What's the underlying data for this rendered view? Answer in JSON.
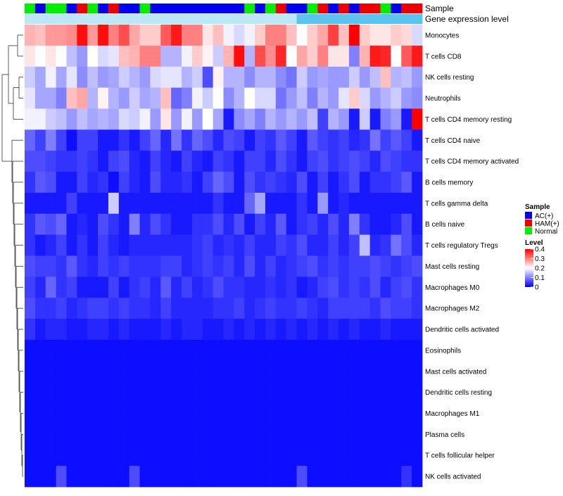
{
  "chart_data": {
    "type": "heatmap",
    "title": "",
    "color_scale": {
      "low": "#0000FF",
      "mid": "#FFFFFF",
      "high": "#FF0000",
      "min": 0,
      "max": 0.4,
      "ticks": [
        0.4,
        0.3,
        0.2,
        0.1,
        0
      ],
      "tick_labels": [
        "0.4",
        "0.3",
        "0.2",
        "0.1",
        "0"
      ]
    },
    "annotation_tracks": [
      {
        "name": "Sample",
        "values": [
          "Normal",
          "AC(+)",
          "Normal",
          "Normal",
          "AC(+)",
          "HAM(+)",
          "Normal",
          "AC(+)",
          "HAM(+)",
          "AC(+)",
          "AC(+)",
          "Normal",
          "AC(+)",
          "AC(+)",
          "AC(+)",
          "AC(+)",
          "AC(+)",
          "AC(+)",
          "AC(+)",
          "AC(+)",
          "AC(+)",
          "Normal",
          "AC(+)",
          "Normal",
          "HAM(+)",
          "AC(+)",
          "AC(+)",
          "Normal",
          "HAM(+)",
          "AC(+)",
          "HAM(+)",
          "AC(+)",
          "HAM(+)",
          "HAM(+)",
          "Normal",
          "AC(+)",
          "HAM(+)",
          "HAM(+)"
        ]
      },
      {
        "name": "Gene expression level",
        "values": [
          "High",
          "High",
          "High",
          "High",
          "High",
          "High",
          "High",
          "High",
          "High",
          "High",
          "High",
          "High",
          "High",
          "High",
          "High",
          "High",
          "High",
          "High",
          "High",
          "High",
          "High",
          "High",
          "High",
          "High",
          "High",
          "High",
          "Low",
          "Low",
          "Low",
          "Low",
          "Low",
          "Low",
          "Low",
          "Low",
          "Low",
          "Low",
          "Low",
          "Low"
        ]
      }
    ],
    "track_colors": {
      "Sample": {
        "AC(+)": "#0000EE",
        "HAM(+)": "#EE0000",
        "Normal": "#00EE00"
      },
      "Gene expression level": {
        "High": "#BDE6F7",
        "Low": "#5CC3EE"
      }
    },
    "legends": [
      {
        "title": "Sample",
        "entries": [
          "AC(+)",
          "HAM(+)",
          "Normal"
        ]
      },
      {
        "title": "Level",
        "entries": []
      }
    ],
    "rows": [
      "Monocytes",
      "T cells CD8",
      "NK cells resting",
      "Neutrophils",
      "T cells CD4 memory resting",
      "T cells CD4 naive",
      "T cells CD4 memory activated",
      "B cells memory",
      "T cells gamma delta",
      "B cells naive",
      "T cells regulatory  Tregs",
      "Mast cells resting",
      "Macrophages M0",
      "Macrophages M2",
      "Dendritic cells activated",
      "Eosinophils",
      "Mast cells activated",
      "Dendritic cells resting",
      "Macrophages M1",
      "Plasma cells",
      "T cells follicular helper",
      "NK cells activated"
    ],
    "n_columns": 38,
    "values": [
      [
        0.26,
        0.25,
        0.28,
        0.28,
        0.29,
        0.39,
        0.28,
        0.39,
        0.3,
        0.34,
        0.27,
        0.24,
        0.24,
        0.33,
        0.38,
        0.3,
        0.3,
        0.22,
        0.25,
        0.19,
        0.17,
        0.19,
        0.24,
        0.3,
        0.3,
        0.25,
        0.2,
        0.24,
        0.27,
        0.35,
        0.25,
        0.4,
        0.24,
        0.22,
        0.22,
        0.24,
        0.23,
        0.17
      ],
      [
        0.22,
        0.2,
        0.22,
        0.2,
        0.15,
        0.12,
        0.2,
        0.17,
        0.18,
        0.25,
        0.26,
        0.3,
        0.3,
        0.14,
        0.14,
        0.19,
        0.24,
        0.21,
        0.16,
        0.26,
        0.39,
        0.14,
        0.34,
        0.29,
        0.37,
        0.2,
        0.27,
        0.24,
        0.3,
        0.22,
        0.22,
        0.1,
        0.26,
        0.38,
        0.37,
        0.2,
        0.33,
        0.38
      ],
      [
        0.16,
        0.13,
        0.19,
        0.13,
        0.18,
        0.11,
        0.15,
        0.12,
        0.13,
        0.16,
        0.14,
        0.12,
        0.17,
        0.18,
        0.18,
        0.14,
        0.16,
        0.06,
        0.21,
        0.14,
        0.14,
        0.11,
        0.14,
        0.14,
        0.11,
        0.09,
        0.16,
        0.12,
        0.13,
        0.12,
        0.12,
        0.16,
        0.12,
        0.15,
        0.25,
        0.14,
        0.15,
        0.12
      ],
      [
        0.18,
        0.13,
        0.13,
        0.1,
        0.25,
        0.27,
        0.14,
        0.21,
        0.14,
        0.12,
        0.16,
        0.13,
        0.14,
        0.25,
        0.08,
        0.1,
        0.19,
        0.16,
        0.2,
        0.11,
        0.14,
        0.2,
        0.17,
        0.17,
        0.09,
        0.12,
        0.15,
        0.1,
        0.14,
        0.12,
        0.18,
        0.24,
        0.17,
        0.12,
        0.14,
        0.16,
        0.12,
        0.11
      ],
      [
        0.19,
        0.19,
        0.16,
        0.15,
        0.12,
        0.15,
        0.13,
        0.14,
        0.13,
        0.17,
        0.16,
        0.19,
        0.12,
        0.22,
        0.12,
        0.19,
        0.12,
        0.2,
        0.13,
        0.02,
        0.11,
        0.13,
        0.1,
        0.14,
        0.12,
        0.14,
        0.12,
        0.15,
        0.05,
        0.14,
        0.12,
        0.02,
        0.16,
        0.02,
        0.1,
        0.12,
        0.02,
        0.4
      ],
      [
        0.08,
        0.05,
        0.1,
        0.05,
        0.01,
        0.05,
        0.05,
        0.02,
        0.02,
        0.04,
        0.02,
        0.05,
        0.08,
        0.03,
        0.09,
        0.04,
        0.08,
        0.06,
        0.03,
        0.06,
        0.05,
        0.02,
        0.05,
        0.04,
        0.07,
        0.05,
        0.02,
        0.07,
        0.05,
        0.04,
        0.05,
        0.03,
        0.04,
        0.09,
        0.05,
        0.07,
        0.05,
        0.02
      ],
      [
        0.06,
        0.06,
        0.05,
        0.04,
        0.04,
        0.05,
        0.04,
        0.02,
        0.05,
        0.06,
        0.03,
        0.02,
        0.05,
        0.03,
        0.02,
        0.05,
        0.03,
        0.02,
        0.05,
        0.04,
        0.02,
        0.05,
        0.05,
        0.03,
        0.06,
        0.04,
        0.02,
        0.05,
        0.06,
        0.04,
        0.05,
        0.06,
        0.05,
        0.03,
        0.06,
        0.05,
        0.04,
        0.04
      ],
      [
        0.04,
        0.07,
        0.06,
        0.02,
        0.02,
        0.05,
        0.03,
        0.04,
        0.01,
        0.05,
        0.03,
        0.02,
        0.06,
        0.03,
        0.03,
        0.04,
        0.02,
        0.05,
        0.08,
        0.06,
        0.02,
        0.06,
        0.04,
        0.05,
        0.04,
        0.03,
        0.06,
        0.02,
        0.05,
        0.02,
        0.04,
        0.06,
        0.02,
        0.04,
        0.04,
        0.05,
        0.07,
        0.02
      ],
      [
        0.02,
        0.02,
        0.02,
        0.02,
        0.05,
        0.02,
        0.02,
        0.02,
        0.16,
        0.02,
        0.02,
        0.02,
        0.02,
        0.02,
        0.02,
        0.02,
        0.02,
        0.02,
        0.04,
        0.02,
        0.02,
        0.08,
        0.13,
        0.02,
        0.02,
        0.02,
        0.04,
        0.02,
        0.12,
        0.02,
        0.03,
        0.02,
        0.02,
        0.02,
        0.02,
        0.02,
        0.02,
        0.02
      ],
      [
        0.04,
        0.07,
        0.06,
        0.08,
        0.02,
        0.03,
        0.02,
        0.06,
        0.04,
        0.02,
        0.1,
        0.03,
        0.06,
        0.04,
        0.02,
        0.02,
        0.04,
        0.04,
        0.06,
        0.03,
        0.06,
        0.02,
        0.05,
        0.03,
        0.07,
        0.02,
        0.04,
        0.05,
        0.03,
        0.06,
        0.03,
        0.1,
        0.04,
        0.02,
        0.02,
        0.03,
        0.06,
        0.02
      ],
      [
        0.04,
        0.02,
        0.03,
        0.05,
        0.02,
        0.04,
        0.02,
        0.05,
        0.03,
        0.02,
        0.03,
        0.03,
        0.03,
        0.03,
        0.03,
        0.03,
        0.04,
        0.05,
        0.03,
        0.04,
        0.03,
        0.05,
        0.03,
        0.03,
        0.05,
        0.04,
        0.06,
        0.03,
        0.03,
        0.05,
        0.03,
        0.05,
        0.15,
        0.03,
        0.04,
        0.09,
        0.06,
        0.03
      ],
      [
        0.06,
        0.05,
        0.05,
        0.04,
        0.07,
        0.04,
        0.03,
        0.05,
        0.04,
        0.05,
        0.04,
        0.04,
        0.04,
        0.05,
        0.05,
        0.03,
        0.04,
        0.05,
        0.04,
        0.05,
        0.03,
        0.06,
        0.03,
        0.05,
        0.03,
        0.04,
        0.05,
        0.06,
        0.04,
        0.05,
        0.04,
        0.05,
        0.05,
        0.06,
        0.05,
        0.04,
        0.05,
        0.06
      ],
      [
        0.05,
        0.03,
        0.08,
        0.04,
        0.05,
        0.02,
        0.02,
        0.02,
        0.05,
        0.02,
        0.04,
        0.05,
        0.03,
        0.07,
        0.03,
        0.05,
        0.03,
        0.04,
        0.06,
        0.04,
        0.04,
        0.03,
        0.03,
        0.04,
        0.03,
        0.04,
        0.02,
        0.03,
        0.05,
        0.06,
        0.04,
        0.05,
        0.04,
        0.06,
        0.03,
        0.05,
        0.06,
        0.04
      ],
      [
        0.06,
        0.04,
        0.04,
        0.05,
        0.03,
        0.04,
        0.05,
        0.05,
        0.04,
        0.05,
        0.04,
        0.04,
        0.03,
        0.05,
        0.03,
        0.03,
        0.03,
        0.03,
        0.04,
        0.04,
        0.05,
        0.03,
        0.04,
        0.05,
        0.04,
        0.04,
        0.05,
        0.04,
        0.03,
        0.05,
        0.05,
        0.05,
        0.05,
        0.04,
        0.06,
        0.05,
        0.05,
        0.04
      ],
      [
        0.04,
        0.02,
        0.03,
        0.03,
        0.02,
        0.02,
        0.03,
        0.03,
        0.02,
        0.03,
        0.02,
        0.02,
        0.02,
        0.03,
        0.02,
        0.03,
        0.03,
        0.02,
        0.02,
        0.03,
        0.02,
        0.03,
        0.02,
        0.03,
        0.02,
        0.03,
        0.02,
        0.03,
        0.02,
        0.03,
        0.02,
        0.03,
        0.02,
        0.02,
        0.03,
        0.02,
        0.02,
        0.02
      ],
      [
        0.01,
        0.01,
        0.01,
        0.01,
        0.01,
        0.01,
        0.01,
        0.01,
        0.01,
        0.01,
        0.01,
        0.01,
        0.01,
        0.01,
        0.01,
        0.01,
        0.01,
        0.01,
        0.01,
        0.01,
        0.01,
        0.01,
        0.01,
        0.01,
        0.01,
        0.01,
        0.01,
        0.01,
        0.01,
        0.01,
        0.01,
        0.01,
        0.01,
        0.01,
        0.01,
        0.01,
        0.01,
        0.01
      ],
      [
        0.01,
        0.01,
        0.01,
        0.01,
        0.01,
        0.01,
        0.01,
        0.01,
        0.01,
        0.01,
        0.01,
        0.01,
        0.01,
        0.01,
        0.01,
        0.01,
        0.01,
        0.01,
        0.01,
        0.01,
        0.01,
        0.01,
        0.01,
        0.01,
        0.01,
        0.01,
        0.01,
        0.01,
        0.01,
        0.01,
        0.01,
        0.01,
        0.01,
        0.01,
        0.01,
        0.01,
        0.01,
        0.01
      ],
      [
        0.01,
        0.01,
        0.01,
        0.01,
        0.01,
        0.01,
        0.01,
        0.01,
        0.01,
        0.01,
        0.01,
        0.01,
        0.01,
        0.01,
        0.01,
        0.01,
        0.01,
        0.01,
        0.01,
        0.01,
        0.01,
        0.01,
        0.01,
        0.01,
        0.01,
        0.01,
        0.01,
        0.01,
        0.01,
        0.01,
        0.01,
        0.01,
        0.01,
        0.01,
        0.01,
        0.01,
        0.01,
        0.01
      ],
      [
        0.01,
        0.01,
        0.01,
        0.01,
        0.01,
        0.01,
        0.01,
        0.01,
        0.01,
        0.01,
        0.01,
        0.01,
        0.01,
        0.01,
        0.01,
        0.01,
        0.01,
        0.01,
        0.01,
        0.01,
        0.01,
        0.01,
        0.01,
        0.01,
        0.01,
        0.01,
        0.01,
        0.01,
        0.01,
        0.01,
        0.01,
        0.01,
        0.01,
        0.01,
        0.01,
        0.01,
        0.01,
        0.01
      ],
      [
        0.01,
        0.01,
        0.01,
        0.01,
        0.01,
        0.01,
        0.01,
        0.01,
        0.01,
        0.01,
        0.01,
        0.01,
        0.01,
        0.01,
        0.01,
        0.01,
        0.01,
        0.01,
        0.01,
        0.01,
        0.01,
        0.01,
        0.01,
        0.01,
        0.01,
        0.01,
        0.01,
        0.01,
        0.01,
        0.01,
        0.01,
        0.01,
        0.01,
        0.01,
        0.01,
        0.01,
        0.01,
        0.01
      ],
      [
        0.01,
        0.01,
        0.01,
        0.01,
        0.01,
        0.01,
        0.01,
        0.01,
        0.01,
        0.01,
        0.01,
        0.01,
        0.01,
        0.01,
        0.01,
        0.01,
        0.01,
        0.01,
        0.01,
        0.01,
        0.01,
        0.01,
        0.01,
        0.01,
        0.01,
        0.01,
        0.01,
        0.01,
        0.01,
        0.01,
        0.01,
        0.01,
        0.01,
        0.01,
        0.01,
        0.01,
        0.01,
        0.01
      ],
      [
        0.01,
        0.01,
        0.01,
        0.06,
        0.01,
        0.01,
        0.01,
        0.01,
        0.01,
        0.01,
        0.06,
        0.01,
        0.01,
        0.01,
        0.01,
        0.01,
        0.01,
        0.01,
        0.01,
        0.01,
        0.01,
        0.01,
        0.01,
        0.01,
        0.01,
        0.01,
        0.06,
        0.01,
        0.01,
        0.01,
        0.01,
        0.01,
        0.01,
        0.01,
        0.01,
        0.01,
        0.04,
        0.01
      ]
    ]
  }
}
